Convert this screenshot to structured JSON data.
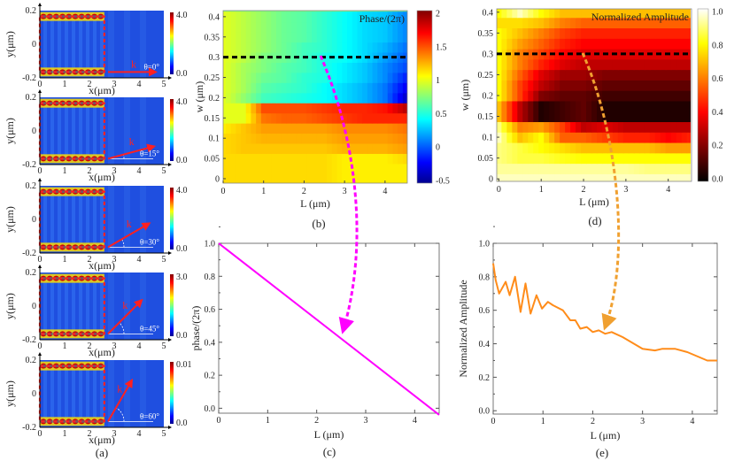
{
  "figure": {
    "panel_labels": [
      "(a)",
      "(b)",
      "(c)",
      "(d)",
      "(e)"
    ]
  },
  "chart_data": [
    {
      "id": "a",
      "type": "heatmap",
      "xlabel": "x(μm)",
      "ylabel": "y(μm)",
      "xticks": [
        "0",
        "1",
        "2",
        "3",
        "4",
        "5"
      ],
      "yticks": [
        "0.2",
        "0",
        "-0.2"
      ],
      "xlim": [
        0,
        5
      ],
      "ylim": [
        -0.2,
        0.2
      ],
      "arrow_label": "k",
      "colors": {
        "slab_outline": "#ff2020",
        "arrow": "#ff2020",
        "background": "#1f4fe0"
      },
      "subplots": [
        {
          "angle_label": "θ=0°",
          "angle_deg": 0,
          "cbar_max": "4.0",
          "cbar_min": "0.0"
        },
        {
          "angle_label": "θ=15°",
          "angle_deg": 15,
          "cbar_max": "4.0",
          "cbar_min": "0.0"
        },
        {
          "angle_label": "θ=30°",
          "angle_deg": 30,
          "cbar_max": "4.0",
          "cbar_min": "0.0"
        },
        {
          "angle_label": "θ=45°",
          "angle_deg": 45,
          "cbar_max": "3.0",
          "cbar_min": "0.0"
        },
        {
          "angle_label": "θ=60°",
          "angle_deg": 60,
          "cbar_max": "0.01",
          "cbar_min": "0.0"
        }
      ]
    },
    {
      "id": "b",
      "type": "heatmap",
      "colormap": "jet",
      "title": "Phase/(2π)",
      "xlabel": "L (μm)",
      "ylabel": "w (μm)",
      "xticks": [
        "0",
        "1",
        "2",
        "3",
        "4"
      ],
      "yticks": [
        "0",
        "0.05",
        "0.1",
        "0.15",
        "0.2",
        "0.25",
        "0.3",
        "0.35",
        "0.4"
      ],
      "cbar_ticks": [
        "-0.5",
        "0",
        "0.5",
        "1",
        "1.5",
        "2"
      ],
      "cbar_range": [
        -0.5,
        2
      ],
      "xlim": [
        0,
        4.5
      ],
      "ylim": [
        0,
        0.4
      ],
      "marker_line_w": 0.3,
      "L": [
        0,
        0.5,
        1,
        1.5,
        2,
        2.5,
        3,
        3.5,
        4,
        4.5
      ],
      "w": [
        0,
        0.025,
        0.05,
        0.075,
        0.1,
        0.125,
        0.15,
        0.175,
        0.2,
        0.225,
        0.25,
        0.275,
        0.3,
        0.325,
        0.35,
        0.375,
        0.4
      ],
      "values": [
        [
          1.15,
          1.15,
          1.15,
          1.15,
          1.15,
          1.15,
          1.1,
          1.1,
          1.1,
          1.1
        ],
        [
          1.15,
          1.15,
          1.15,
          1.15,
          1.15,
          1.15,
          1.1,
          1.1,
          1.1,
          1.1
        ],
        [
          1.15,
          1.15,
          1.15,
          1.15,
          1.15,
          1.15,
          1.1,
          1.1,
          1.1,
          1.15
        ],
        [
          1.15,
          1.2,
          1.2,
          1.2,
          1.2,
          1.2,
          1.25,
          1.25,
          1.25,
          1.3
        ],
        [
          1.15,
          1.2,
          1.25,
          1.25,
          1.25,
          1.25,
          1.3,
          1.3,
          1.3,
          1.35
        ],
        [
          1.1,
          1.2,
          1.3,
          1.3,
          1.3,
          1.3,
          1.35,
          1.35,
          1.35,
          1.4
        ],
        [
          1.0,
          1.0,
          1.4,
          1.45,
          1.45,
          1.5,
          1.55,
          1.6,
          1.6,
          1.6
        ],
        [
          1.0,
          1.0,
          1.5,
          1.5,
          1.5,
          1.55,
          1.6,
          1.6,
          1.65,
          1.85
        ],
        [
          1.0,
          0.8,
          0.6,
          0.55,
          0.5,
          0.45,
          0.35,
          0.25,
          0.1,
          -0.3
        ],
        [
          1.0,
          0.85,
          0.65,
          0.6,
          0.55,
          0.45,
          0.35,
          0.25,
          0.1,
          -0.2
        ],
        [
          1.0,
          0.85,
          0.7,
          0.65,
          0.55,
          0.5,
          0.4,
          0.3,
          0.15,
          -0.1
        ],
        [
          1.0,
          0.85,
          0.75,
          0.65,
          0.6,
          0.5,
          0.4,
          0.3,
          0.15,
          0.0
        ],
        [
          1.0,
          0.9,
          0.75,
          0.7,
          0.6,
          0.5,
          0.45,
          0.35,
          0.2,
          0.05
        ],
        [
          1.0,
          0.9,
          0.8,
          0.7,
          0.6,
          0.55,
          0.45,
          0.35,
          0.25,
          0.1
        ],
        [
          1.0,
          0.9,
          0.8,
          0.7,
          0.65,
          0.55,
          0.45,
          0.35,
          0.3,
          0.15
        ],
        [
          1.0,
          0.9,
          0.8,
          0.7,
          0.65,
          0.55,
          0.45,
          0.35,
          0.3,
          0.15
        ],
        [
          1.0,
          0.9,
          0.8,
          0.7,
          0.65,
          0.55,
          0.45,
          0.35,
          0.3,
          0.15
        ]
      ]
    },
    {
      "id": "c",
      "type": "line",
      "xlabel": "L (μm)",
      "ylabel": "phase/(2π)",
      "xticks": [
        "0",
        "1",
        "2",
        "3",
        "4"
      ],
      "yticks": [
        "0.0",
        "0.2",
        "0.4",
        "0.6",
        "0.8",
        "1.0"
      ],
      "xlim": [
        0,
        4.5
      ],
      "ylim": [
        -0.03,
        1.0
      ],
      "color": "#ff00ff",
      "x": [
        0,
        4.5
      ],
      "y": [
        1.0,
        -0.04
      ]
    },
    {
      "id": "d",
      "type": "heatmap",
      "colormap": "hot",
      "title": "Normalized Amplitude",
      "xlabel": "L (μm)",
      "ylabel": "w (μm)",
      "xticks": [
        "0",
        "1",
        "2",
        "3",
        "4"
      ],
      "yticks": [
        "0",
        "0.05",
        "0.1",
        "0.15",
        "0.2",
        "0.25",
        "0.3",
        "0.35",
        "0.4"
      ],
      "cbar_ticks": [
        "0.0",
        "0.2",
        "0.4",
        "0.6",
        "0.8",
        "1.0"
      ],
      "cbar_range": [
        0,
        1
      ],
      "xlim": [
        0,
        4.5
      ],
      "ylim": [
        0,
        0.4
      ],
      "marker_line_w": 0.3,
      "L": [
        0,
        0.5,
        1,
        1.5,
        2,
        2.5,
        3,
        3.5,
        4,
        4.5
      ],
      "w": [
        0,
        0.025,
        0.05,
        0.075,
        0.1,
        0.125,
        0.15,
        0.175,
        0.2,
        0.225,
        0.25,
        0.275,
        0.3,
        0.325,
        0.35,
        0.375,
        0.4
      ],
      "values": [
        [
          0.95,
          0.95,
          0.95,
          0.95,
          0.95,
          0.95,
          0.95,
          0.95,
          0.95,
          0.95
        ],
        [
          0.92,
          0.92,
          0.92,
          0.92,
          0.92,
          0.92,
          0.92,
          0.9,
          0.9,
          0.9
        ],
        [
          0.9,
          0.85,
          0.85,
          0.82,
          0.8,
          0.8,
          0.8,
          0.8,
          0.8,
          0.8
        ],
        [
          0.9,
          0.85,
          0.8,
          0.75,
          0.7,
          0.7,
          0.7,
          0.7,
          0.65,
          0.65
        ],
        [
          0.95,
          0.7,
          0.8,
          0.55,
          0.55,
          0.5,
          0.45,
          0.45,
          0.4,
          0.45
        ],
        [
          0.9,
          0.6,
          0.65,
          0.5,
          0.3,
          0.35,
          0.3,
          0.3,
          0.3,
          0.3
        ],
        [
          0.7,
          0.3,
          0.05,
          0.1,
          0.15,
          0.05,
          0.05,
          0.05,
          0.05,
          0.05
        ],
        [
          0.7,
          0.3,
          0.05,
          0.1,
          0.15,
          0.05,
          0.05,
          0.05,
          0.05,
          0.05
        ],
        [
          0.8,
          0.5,
          0.2,
          0.15,
          0.15,
          0.1,
          0.1,
          0.1,
          0.1,
          0.1
        ],
        [
          0.8,
          0.5,
          0.3,
          0.2,
          0.2,
          0.15,
          0.15,
          0.15,
          0.15,
          0.15
        ],
        [
          0.8,
          0.55,
          0.35,
          0.25,
          0.25,
          0.2,
          0.2,
          0.2,
          0.2,
          0.2
        ],
        [
          0.8,
          0.6,
          0.45,
          0.35,
          0.3,
          0.3,
          0.3,
          0.3,
          0.3,
          0.3
        ],
        [
          0.8,
          0.6,
          0.5,
          0.4,
          0.35,
          0.35,
          0.35,
          0.35,
          0.35,
          0.35
        ],
        [
          0.8,
          0.65,
          0.55,
          0.45,
          0.4,
          0.4,
          0.4,
          0.4,
          0.4,
          0.4
        ],
        [
          0.8,
          0.7,
          0.6,
          0.5,
          0.45,
          0.45,
          0.45,
          0.45,
          0.45,
          0.45
        ],
        [
          0.75,
          0.75,
          0.7,
          0.6,
          0.55,
          0.55,
          0.55,
          0.55,
          0.55,
          0.55
        ],
        [
          0.8,
          0.95,
          0.8,
          0.7,
          0.7,
          0.7,
          0.7,
          0.7,
          0.7,
          0.7
        ]
      ]
    },
    {
      "id": "e",
      "type": "line",
      "xlabel": "L (μm)",
      "ylabel": "Normalized Amplitude",
      "xticks": [
        "0",
        "1",
        "2",
        "3",
        "4"
      ],
      "yticks": [
        "0.0",
        "0.2",
        "0.4",
        "0.6",
        "0.8",
        "1.0"
      ],
      "xlim": [
        0,
        4.5
      ],
      "ylim": [
        -0.02,
        1.0
      ],
      "color": "#ff8c1a",
      "x": [
        0,
        0.05,
        0.12,
        0.25,
        0.33,
        0.44,
        0.55,
        0.65,
        0.75,
        0.87,
        0.98,
        1.1,
        1.2,
        1.4,
        1.55,
        1.65,
        1.75,
        1.88,
        2.0,
        2.12,
        2.25,
        2.38,
        2.6,
        3.0,
        3.25,
        3.4,
        3.65,
        3.9,
        4.3,
        4.5
      ],
      "y": [
        0.88,
        0.78,
        0.7,
        0.77,
        0.69,
        0.8,
        0.59,
        0.76,
        0.58,
        0.69,
        0.61,
        0.65,
        0.63,
        0.6,
        0.54,
        0.54,
        0.49,
        0.5,
        0.47,
        0.48,
        0.46,
        0.47,
        0.44,
        0.37,
        0.36,
        0.37,
        0.37,
        0.35,
        0.3,
        0.3
      ]
    }
  ],
  "annotations": {
    "phase_arrow_color": "#ff00ff",
    "amplitude_arrow_color": "#f0a030",
    "marker_line_color": "#000000"
  }
}
